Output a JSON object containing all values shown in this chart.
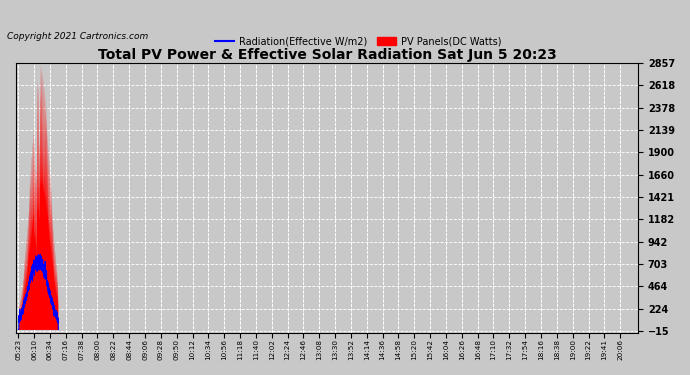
{
  "title": "Total PV Power & Effective Solar Radiation Sat Jun 5 20:23",
  "copyright": "Copyright 2021 Cartronics.com",
  "legend_radiation": "Radiation(Effective W/m2)",
  "legend_pv": "PV Panels(DC Watts)",
  "yticks": [
    2857.0,
    2617.6,
    2378.3,
    2138.9,
    1899.6,
    1660.2,
    1420.9,
    1181.5,
    942.2,
    702.8,
    463.5,
    224.1,
    -15.2
  ],
  "ymin": -15.2,
  "ymax": 2857.0,
  "bg_color": "#c8c8c8",
  "plot_bg_color": "#c8c8c8",
  "grid_color": "#aaaaaa",
  "pv_color": "#ff0000",
  "radiation_color": "blue",
  "title_color": "black",
  "xtick_labels": [
    "05:23",
    "06:10",
    "06:34",
    "07:16",
    "07:38",
    "08:00",
    "08:22",
    "08:44",
    "09:06",
    "09:28",
    "09:50",
    "10:12",
    "10:34",
    "10:56",
    "11:18",
    "11:40",
    "12:02",
    "12:24",
    "12:46",
    "13:08",
    "13:30",
    "13:52",
    "14:14",
    "14:36",
    "14:58",
    "15:20",
    "15:42",
    "16:04",
    "16:26",
    "16:48",
    "17:10",
    "17:32",
    "17:54",
    "18:16",
    "18:38",
    "19:00",
    "19:22",
    "19:41",
    "20:06"
  ]
}
